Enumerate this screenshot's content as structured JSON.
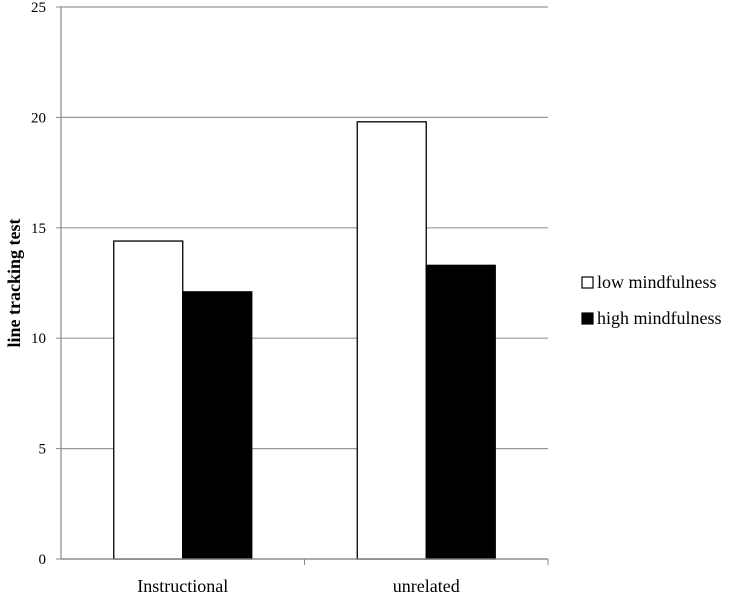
{
  "chart_data": {
    "type": "bar",
    "categories": [
      "Instructional",
      "unrelated"
    ],
    "series": [
      {
        "name": "low mindfulness",
        "values": [
          14.4,
          19.8
        ],
        "color": "#ffffff"
      },
      {
        "name": "high mindfulness",
        "values": [
          12.1,
          13.3
        ],
        "color": "#000000"
      }
    ],
    "title": "",
    "xlabel": "",
    "ylabel": "line tracking test",
    "ylim": [
      0,
      25
    ],
    "yticks": [
      "0",
      "5",
      "10",
      "15",
      "20",
      "25"
    ],
    "grid": true,
    "legend_position": "right"
  }
}
